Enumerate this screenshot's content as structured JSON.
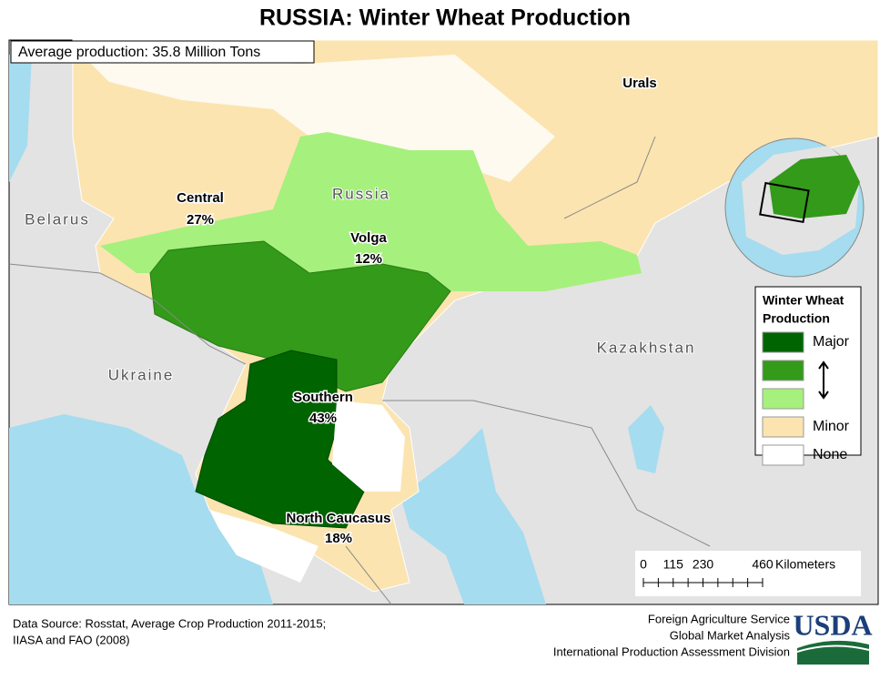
{
  "title": "RUSSIA:  Winter Wheat Production",
  "average_production": "Average production: 35.8 Million Tons",
  "regions": [
    {
      "name": "Central",
      "share": "27%"
    },
    {
      "name": "Volga",
      "share": "12%"
    },
    {
      "name": "Southern",
      "share": "43%"
    },
    {
      "name": "North Caucasus",
      "share": "18%"
    },
    {
      "name": "Urals"
    }
  ],
  "countries": [
    "Russia",
    "Belarus",
    "Ukraine",
    "Kazakhstan"
  ],
  "legend": {
    "title": [
      "Winter Wheat",
      "Production"
    ],
    "items": [
      {
        "label": "Major",
        "color": "#006400"
      },
      {
        "color": "#339a1a"
      },
      {
        "color": "#a6f07d"
      },
      {
        "label": "Minor",
        "color": "#fbe4b0"
      },
      {
        "label": "None",
        "color": "#ffffff"
      }
    ]
  },
  "scale_bar": {
    "ticks": [
      0,
      115,
      230,
      460
    ],
    "unit": "Kilometers"
  },
  "source": [
    "Data Source: Rosstat, Average Crop Production 2011-2015;",
    "IIASA and FAO (2008)"
  ],
  "credits": [
    "Foreign Agriculture Service",
    "Global Market Analysis",
    "International Production Assessment Division"
  ],
  "logo": "USDA"
}
